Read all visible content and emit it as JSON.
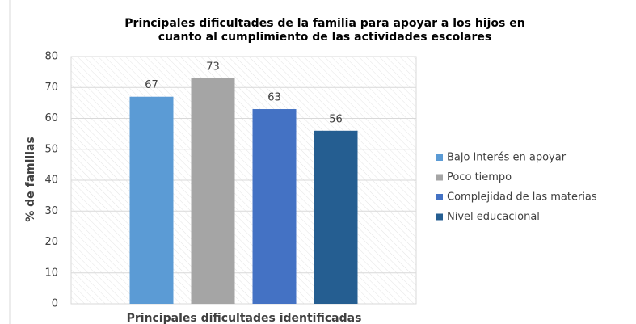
{
  "chart_data": {
    "type": "bar",
    "title": [
      "Principales dificultades de la familia para apoyar a los hijos en",
      "cuanto al cumplimiento de las actividades escolares"
    ],
    "x_label": "Principales dificultades identificadas",
    "y_label": "% de familias",
    "series": [
      {
        "name": "Bajo interés en apoyar",
        "color": "#5b9bd5",
        "values": [
          67
        ]
      },
      {
        "name": "Poco tiempo",
        "color": "#a5a5a5",
        "values": [
          73
        ]
      },
      {
        "name": "Complejidad de las materias",
        "color": "#4472c4",
        "values": [
          63
        ]
      },
      {
        "name": "Nivel educacional",
        "color": "#255e91",
        "values": [
          56
        ]
      }
    ],
    "ylim": [
      0,
      80
    ],
    "yticks": [
      0,
      10,
      20,
      30,
      40,
      50,
      60,
      70,
      80
    ],
    "grid": true,
    "legend": "right"
  }
}
